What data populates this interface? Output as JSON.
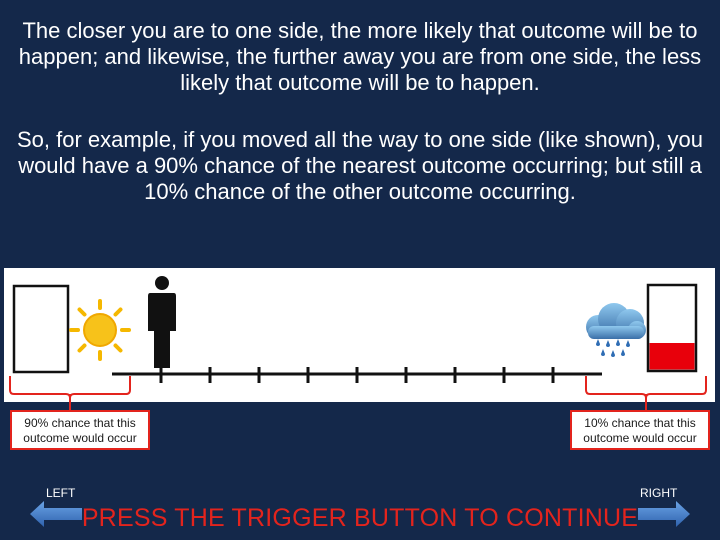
{
  "instructions": {
    "paragraph1": "The closer you are to one side, the more likely that outcome will be to happen; and likewise, the further away you are from one side, the less likely that outcome will be to happen.",
    "paragraph2": "So, for example, if you moved all the way to one side (like shown), you would have a 90% chance of the nearest outcome occurring; but still a 10% chance of the other outcome occurring."
  },
  "scale": {
    "tick_count": 9,
    "participant_position": "far-left",
    "left_outcome": {
      "icon": "sun-icon",
      "chance_text": "90% chance that this outcome would occur",
      "meter_fill_percent": 0
    },
    "right_outcome": {
      "icon": "rain-cloud-icon",
      "chance_text": "10% chance that this outcome would occur",
      "meter_fill_percent": 23
    }
  },
  "navigation": {
    "left_label": "LEFT",
    "right_label": "RIGHT",
    "continue_prompt": "PRESS THE TRIGGER BUTTON TO CONTINUE"
  },
  "colors": {
    "background": "#14284a",
    "accent_red": "#e3241d",
    "arrow_blue": "#3d78c9",
    "sun_yellow": "#f5b800"
  }
}
